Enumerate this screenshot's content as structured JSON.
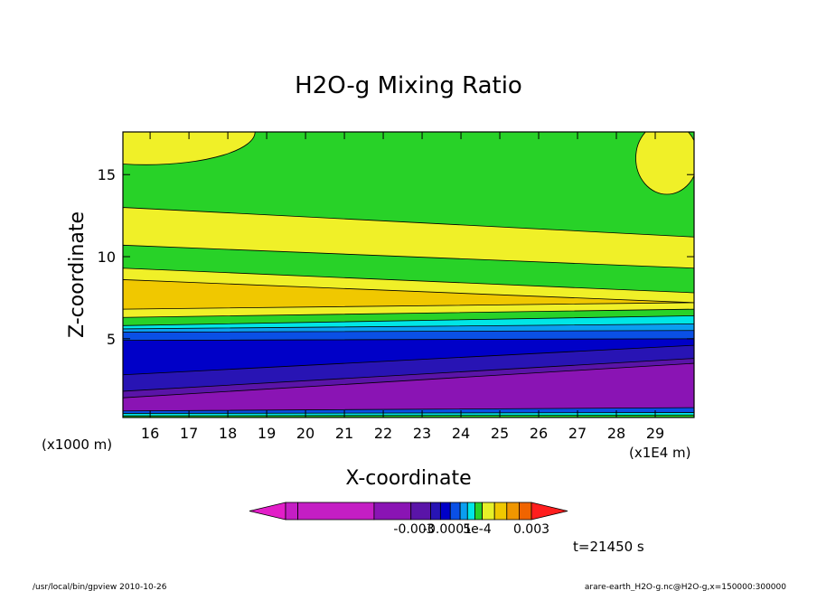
{
  "chart_data": {
    "type": "heatmap",
    "title": "H2O-g Mixing Ratio",
    "xlabel": "X-coordinate",
    "ylabel": "Z-coordinate",
    "x_unit_label": "(x1E4 m)",
    "y_unit_label": "(x1000 m)",
    "x_ticks": [
      16,
      17,
      18,
      19,
      20,
      21,
      22,
      23,
      24,
      25,
      26,
      27,
      28,
      29
    ],
    "y_ticks": [
      5,
      10,
      15
    ],
    "xlim": [
      15.3,
      30.0
    ],
    "ylim": [
      0.2,
      17.6
    ],
    "colorbar": {
      "tick_labels": [
        {
          "text": "-0.003",
          "value": -0.003
        },
        {
          "text": "-0.0001",
          "value": -0.0001
        },
        {
          "text": "5e-4",
          "value": 0.0005
        },
        {
          "text": "0.003",
          "value": 0.003
        }
      ],
      "colors": [
        "#c41ec4",
        "#c41ec4",
        "#8a14b4",
        "#5a14a8",
        "#2814b4",
        "#0000c8",
        "#0a50e6",
        "#0a9ef0",
        "#00e6e6",
        "#28d228",
        "#e6f028",
        "#f0c800",
        "#f09600",
        "#f06400"
      ],
      "under_color": "#e21ec8",
      "over_color": "#ff1e1e"
    },
    "annotation": "t=21450 s",
    "footer_left": "/usr/local/bin/gpview  2010-10-26",
    "footer_right": "arare-earth_H2O-g.nc@H2O-g,x=150000:300000",
    "bands": [
      {
        "color": "#28d228",
        "top": [
          17.6,
          17.6
        ]
      },
      {
        "color": "#f0f028",
        "top": [
          13.0,
          11.2
        ]
      },
      {
        "color": "#28d228",
        "top": [
          10.7,
          9.3
        ]
      },
      {
        "color": "#f0f028",
        "top": [
          9.3,
          7.8
        ]
      },
      {
        "color": "#f0c800",
        "top": [
          8.6,
          7.2
        ]
      },
      {
        "color": "#f0f028",
        "top": [
          6.8,
          7.2
        ]
      },
      {
        "color": "#28d228",
        "top": [
          6.3,
          6.8
        ]
      },
      {
        "color": "#00e6e6",
        "top": [
          5.8,
          6.4
        ]
      },
      {
        "color": "#0a9ef0",
        "top": [
          5.6,
          5.9
        ]
      },
      {
        "color": "#0a50e6",
        "top": [
          5.4,
          5.5
        ]
      },
      {
        "color": "#0000c8",
        "top": [
          4.9,
          5.0
        ]
      },
      {
        "color": "#2814b4",
        "top": [
          2.8,
          4.6
        ]
      },
      {
        "color": "#5a14a8",
        "top": [
          1.8,
          3.8
        ]
      },
      {
        "color": "#8a14b4",
        "top": [
          1.4,
          3.5
        ]
      },
      {
        "color": "#0a50e6",
        "top": [
          0.6,
          0.8
        ]
      },
      {
        "color": "#00e6e6",
        "top": [
          0.45,
          0.5
        ]
      },
      {
        "color": "#28d228",
        "top": [
          0.3,
          0.35
        ]
      }
    ],
    "blobs": [
      {
        "color": "#f0f028",
        "x": 15.9,
        "z": 17.6,
        "rx": 2.8,
        "rz": 2.0
      },
      {
        "color": "#f0f028",
        "x": 29.3,
        "z": 16.0,
        "rx": 0.8,
        "rz": 2.2
      }
    ]
  }
}
